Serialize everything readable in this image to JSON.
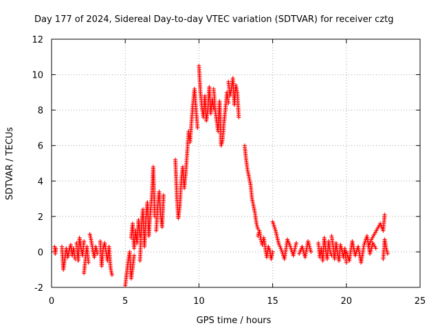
{
  "chart_data": {
    "type": "scatter",
    "title": "Day 177 of 2024, Sidereal Day-to-day VTEC variation (SDTVAR) for receiver cztg",
    "xlabel": "GPS time / hours",
    "ylabel": "SDTVAR / TECUs",
    "xlim": [
      0,
      25
    ],
    "ylim": [
      -2,
      12
    ],
    "xticks": [
      0,
      5,
      10,
      15,
      20,
      25
    ],
    "yticks": [
      -2,
      0,
      2,
      4,
      6,
      8,
      10,
      12
    ],
    "grid": true,
    "marker": "+",
    "color": "#ff0000",
    "series": [
      {
        "name": "SDTVAR",
        "segments": [
          {
            "x": [
              0.2,
              0.25,
              0.3
            ],
            "y": [
              0.3,
              -0.1,
              0.2
            ]
          },
          {
            "x": [
              0.7,
              0.8,
              0.9,
              1.0,
              1.1,
              1.2,
              1.3,
              1.4,
              1.5,
              1.6
            ],
            "y": [
              0.3,
              -1.0,
              -0.4,
              0.2,
              -0.3,
              0.1,
              0.4,
              -0.2,
              0.2,
              -0.4
            ]
          },
          {
            "x": [
              1.7,
              1.8,
              1.9,
              2.0,
              2.1,
              2.2
            ],
            "y": [
              0.5,
              -0.5,
              0.8,
              0.2,
              -0.2,
              0.6
            ]
          },
          {
            "x": [
              2.2,
              2.3,
              2.4,
              2.5
            ],
            "y": [
              -1.2,
              -0.4,
              0.3,
              -0.6
            ]
          },
          {
            "x": [
              2.6,
              2.7,
              2.8,
              2.9,
              3.0,
              3.1
            ],
            "y": [
              1.0,
              0.6,
              0.1,
              -0.3,
              0.3,
              -0.1
            ]
          },
          {
            "x": [
              3.3,
              3.4,
              3.5,
              3.6,
              3.7,
              3.8,
              3.9,
              4.0,
              4.1
            ],
            "y": [
              0.6,
              -0.8,
              0.2,
              0.5,
              0.0,
              -0.5,
              0.3,
              -0.9,
              -1.3
            ]
          },
          {
            "x": [
              5.0,
              5.1,
              5.2,
              5.3,
              5.4,
              5.5,
              5.6
            ],
            "y": [
              -1.9,
              -1.2,
              -0.5,
              0.0,
              -1.5,
              -0.9,
              -0.2
            ]
          },
          {
            "x": [
              5.4,
              5.5,
              5.6,
              5.7,
              5.8,
              5.9,
              6.0
            ],
            "y": [
              0.8,
              1.6,
              0.2,
              1.2,
              0.5,
              1.8,
              0.9
            ]
          },
          {
            "x": [
              6.0,
              6.1,
              6.2,
              6.3,
              6.4,
              6.5,
              6.6,
              6.7,
              6.8,
              6.9,
              7.0
            ],
            "y": [
              -0.5,
              1.5,
              2.4,
              0.3,
              1.9,
              2.8,
              0.9,
              2.2,
              3.1,
              4.8,
              2.0
            ]
          },
          {
            "x": [
              7.1,
              7.2,
              7.3,
              7.4,
              7.5,
              7.6
            ],
            "y": [
              1.2,
              2.6,
              3.4,
              2.1,
              1.4,
              3.2
            ]
          },
          {
            "x": [
              8.4,
              8.5,
              8.6,
              8.7,
              8.8,
              8.9,
              9.0,
              9.1,
              9.2,
              9.3,
              9.4,
              9.5,
              9.6,
              9.7,
              9.8,
              9.9
            ],
            "y": [
              5.2,
              3.1,
              1.9,
              2.6,
              4.0,
              4.8,
              3.6,
              4.4,
              5.6,
              6.8,
              6.2,
              7.4,
              8.4,
              9.2,
              8.0,
              7.0
            ]
          },
          {
            "x": [
              10.0,
              10.1,
              10.2,
              10.3,
              10.4,
              10.5,
              10.6,
              10.7,
              10.8,
              10.9,
              11.0
            ],
            "y": [
              10.5,
              9.0,
              8.2,
              7.6,
              8.8,
              7.4,
              8.0,
              9.3,
              7.8,
              8.6,
              8.1
            ]
          },
          {
            "x": [
              11.0,
              11.1,
              11.2,
              11.3,
              11.4,
              11.5,
              11.6,
              11.7,
              11.8,
              11.9,
              12.0
            ],
            "y": [
              9.2,
              8.0,
              7.4,
              6.8,
              8.5,
              6.0,
              6.3,
              7.3,
              8.1,
              9.0,
              8.4
            ]
          },
          {
            "x": [
              12.0,
              12.1,
              12.2,
              12.3,
              12.4,
              12.5,
              12.6,
              12.7
            ],
            "y": [
              9.6,
              8.8,
              9.2,
              9.8,
              8.3,
              9.4,
              9.0,
              7.6
            ]
          },
          {
            "x": [
              13.1,
              13.2,
              13.3,
              13.4,
              13.5,
              13.6,
              13.7,
              13.8,
              13.9,
              14.0
            ],
            "y": [
              6.0,
              5.2,
              4.6,
              4.2,
              3.8,
              3.0,
              2.6,
              2.2,
              1.6,
              1.3
            ]
          },
          {
            "x": [
              14.0,
              14.1,
              14.2,
              14.3,
              14.4,
              14.5,
              14.6,
              14.7,
              14.8,
              14.9,
              15.0
            ],
            "y": [
              0.9,
              1.2,
              0.7,
              0.4,
              0.8,
              0.2,
              -0.3,
              0.3,
              0.1,
              -0.4,
              0.0
            ]
          },
          {
            "x": [
              15.0,
              15.2,
              15.4,
              15.6,
              15.8,
              16.0,
              16.2,
              16.4,
              16.6
            ],
            "y": [
              1.7,
              1.2,
              0.5,
              0.1,
              -0.4,
              0.7,
              0.3,
              -0.2,
              0.5
            ]
          },
          {
            "x": [
              16.8,
              17.0,
              17.2,
              17.4,
              17.6
            ],
            "y": [
              -0.1,
              0.3,
              -0.3,
              0.6,
              0.0
            ]
          },
          {
            "x": [
              18.1,
              18.2,
              18.3,
              18.4,
              18.5,
              18.6,
              18.7,
              18.8,
              18.9,
              19.0
            ],
            "y": [
              0.5,
              -0.3,
              0.2,
              -0.5,
              0.8,
              0.1,
              -0.4,
              0.6,
              0.0,
              -0.2
            ]
          },
          {
            "x": [
              19.0,
              19.1,
              19.2,
              19.3,
              19.4,
              19.5,
              19.6,
              19.7,
              19.8,
              19.9,
              20.0
            ],
            "y": [
              0.9,
              0.3,
              -0.4,
              0.5,
              -0.1,
              -0.5,
              0.4,
              0.1,
              -0.3,
              0.2,
              -0.6
            ]
          },
          {
            "x": [
              20.0,
              20.2,
              20.4,
              20.6,
              20.8,
              21.0,
              21.2,
              21.4,
              21.6,
              21.8,
              22.0
            ],
            "y": [
              0.0,
              -0.5,
              0.6,
              -0.2,
              0.3,
              -0.6,
              0.4,
              0.9,
              -0.1,
              0.5,
              0.2
            ]
          },
          {
            "x": [
              21.5,
              21.7,
              21.9,
              22.1,
              22.3,
              22.5,
              22.6
            ],
            "y": [
              0.3,
              0.7,
              1.0,
              1.3,
              1.6,
              1.2,
              2.1
            ]
          },
          {
            "x": [
              22.5,
              22.6,
              22.7,
              22.8
            ],
            "y": [
              -0.4,
              0.7,
              0.2,
              -0.1
            ]
          }
        ]
      }
    ]
  }
}
